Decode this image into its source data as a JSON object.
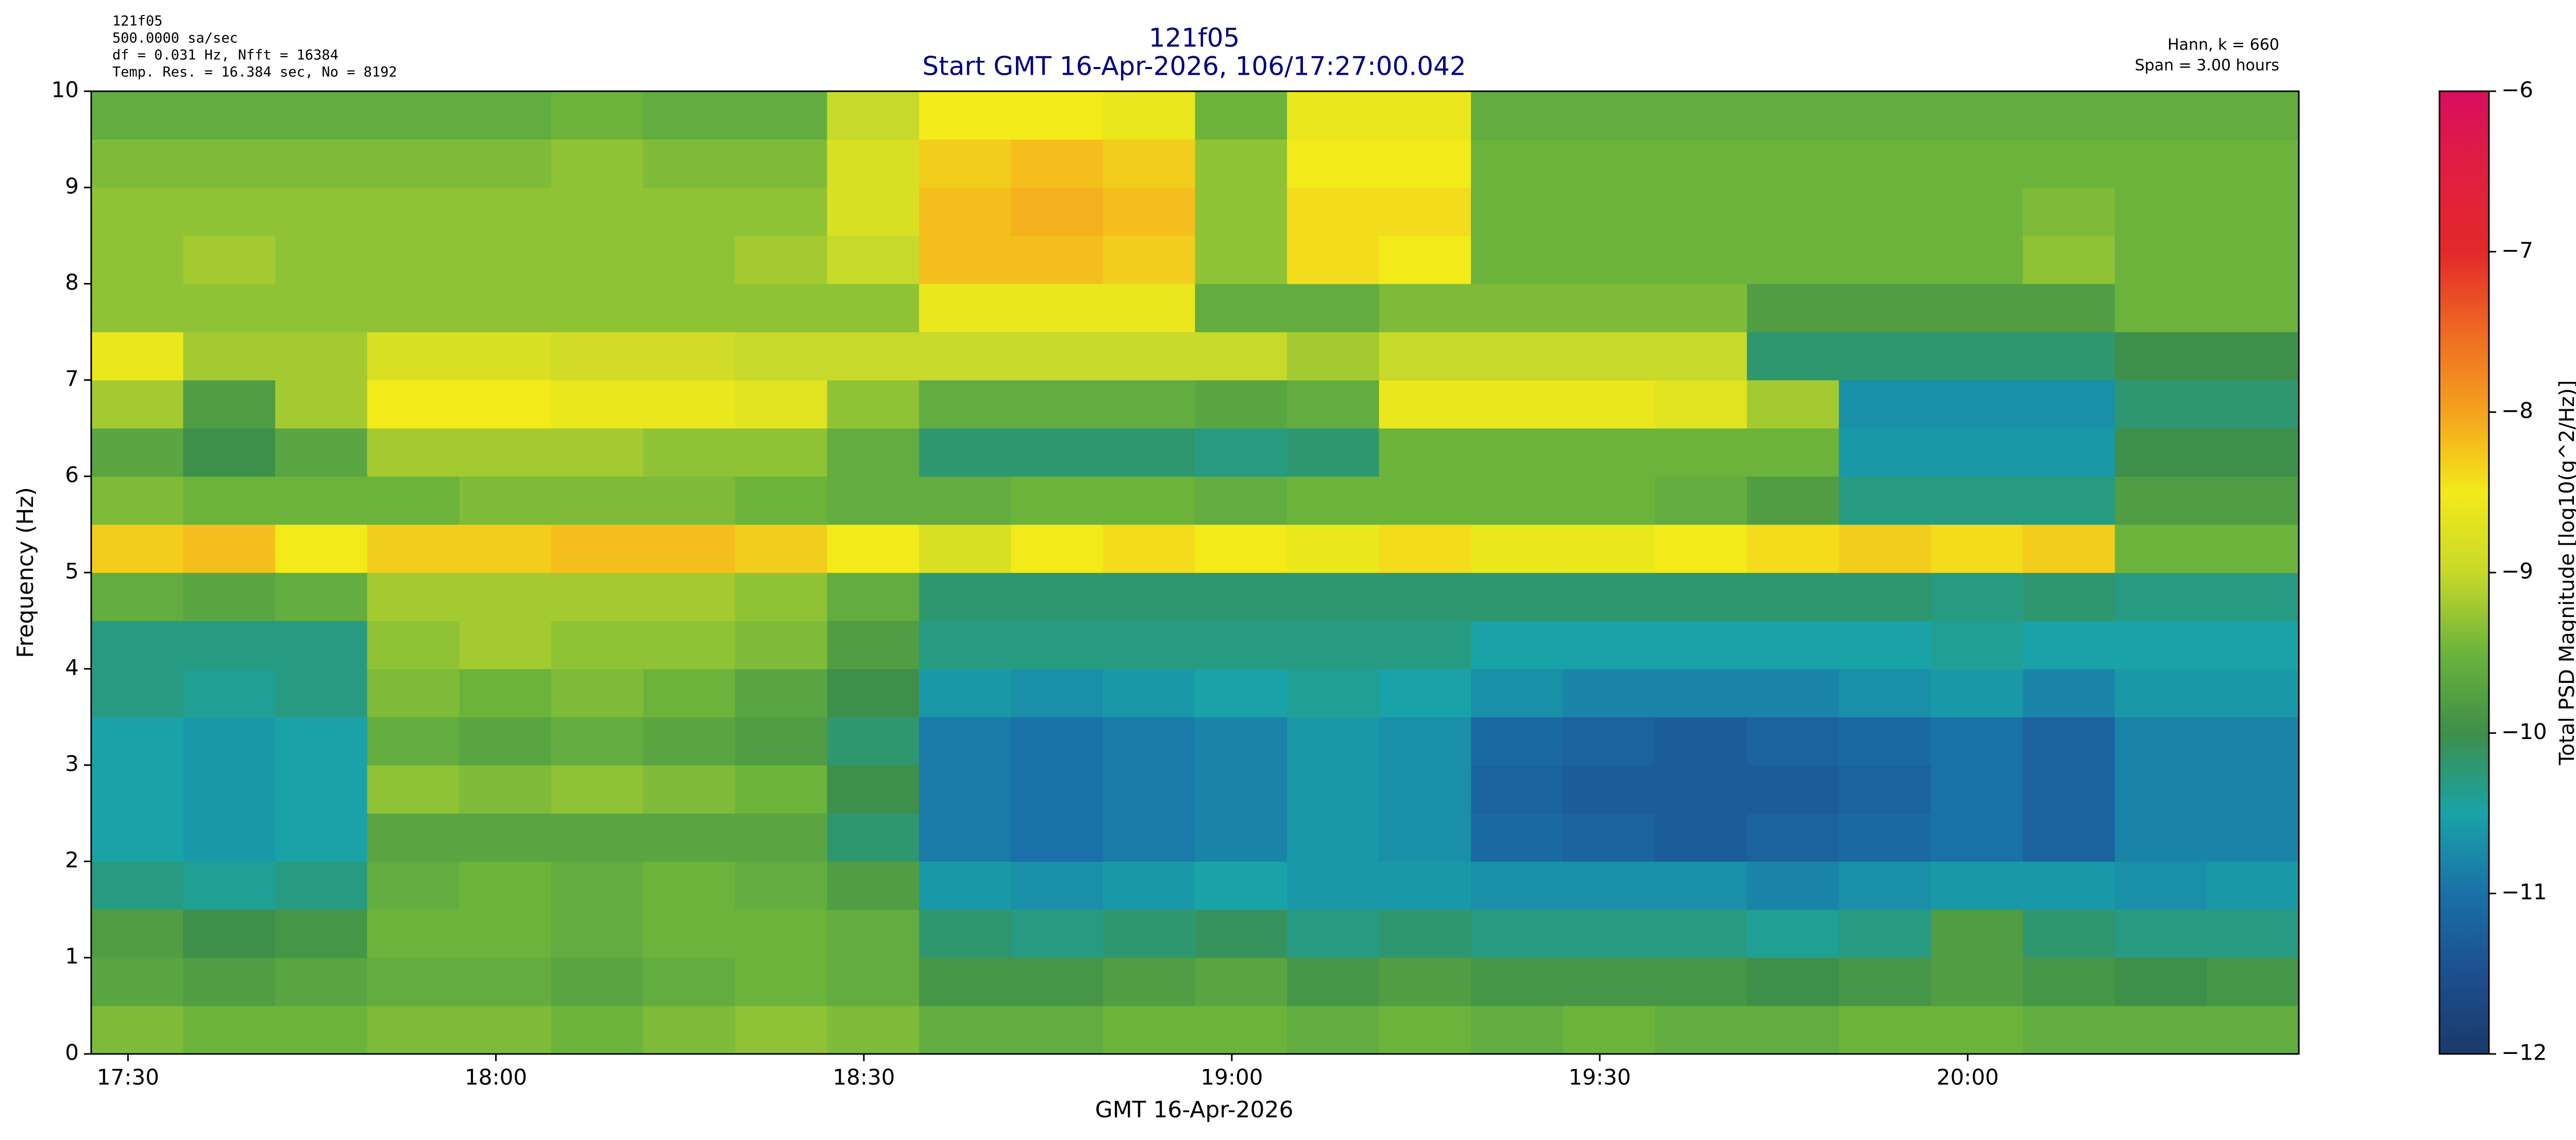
{
  "chart_data": {
    "type": "heatmap",
    "title": "121f05",
    "subtitle": "Start GMT 16-Apr-2026, 106/17:27:00.042",
    "info_left": [
      "121f05",
      "500.0000 sa/sec",
      "df = 0.031 Hz,  Nfft = 16384",
      "Temp. Res. = 16.384 sec, No = 8192"
    ],
    "info_right": [
      "Hann, k = 660",
      "Span = 3.00 hours"
    ],
    "xlabel": "GMT 16-Apr-2026",
    "ylabel": "Frequency (Hz)",
    "colorbar_label": "Total PSD Magnitude [log10(g^2/Hz)]",
    "xlim": [
      17.45,
      20.45
    ],
    "xticks": [
      {
        "value": 17.5,
        "label": "17:30"
      },
      {
        "value": 18,
        "label": "18:00"
      },
      {
        "value": 18.5,
        "label": "18:30"
      },
      {
        "value": 19,
        "label": "19:00"
      },
      {
        "value": 19.5,
        "label": "19:30"
      },
      {
        "value": 20,
        "label": "20:00"
      }
    ],
    "ylim": [
      0,
      10
    ],
    "yticks": [
      0,
      1,
      2,
      3,
      4,
      5,
      6,
      7,
      8,
      9,
      10
    ],
    "clim": [
      -12,
      -6
    ],
    "cticks": [
      {
        "value": -12,
        "label": "−12"
      },
      {
        "value": -11,
        "label": "−11"
      },
      {
        "value": -10,
        "label": "−10"
      },
      {
        "value": -9,
        "label": "−9"
      },
      {
        "value": -8,
        "label": "−8"
      },
      {
        "value": -7,
        "label": "−7"
      },
      {
        "value": -6,
        "label": "−6"
      }
    ],
    "colormap": [
      "#1b3a6b",
      "#1c4f8f",
      "#1a70a8",
      "#19a3a8",
      "#3d8f4a",
      "#6cb33c",
      "#c7d92a",
      "#f3ea1a",
      "#f4a21e",
      "#ee6a22",
      "#e3282a",
      "#e01f3f",
      "#d90d5e"
    ],
    "xbins": [
      17.45,
      17.575,
      17.7,
      17.825,
      17.95,
      18.075,
      18.2,
      18.325,
      18.45,
      18.575,
      18.7,
      18.825,
      18.95,
      19.075,
      19.2,
      19.325,
      19.45,
      19.575,
      19.7,
      19.825,
      19.95,
      20.075,
      20.2,
      20.325,
      20.45
    ],
    "ybins": [
      0,
      0.5,
      1,
      1.5,
      2,
      2.5,
      3,
      3.5,
      4,
      4.5,
      5,
      5.5,
      6,
      6.5,
      7,
      7.5,
      8,
      8.5,
      9,
      9.5,
      10
    ],
    "values": [
      [
        -9.4,
        -9.5,
        -9.5,
        -9.4,
        -9.4,
        -9.5,
        -9.4,
        -9.3,
        -9.4,
        -9.6,
        -9.6,
        -9.5,
        -9.5,
        -9.6,
        -9.5,
        -9.6,
        -9.5,
        -9.6,
        -9.6,
        -9.5,
        -9.5,
        -9.6,
        -9.6,
        -9.6
      ],
      [
        -9.7,
        -9.8,
        -9.7,
        -9.6,
        -9.6,
        -9.7,
        -9.6,
        -9.5,
        -9.6,
        -9.9,
        -9.9,
        -9.8,
        -9.7,
        -9.9,
        -9.8,
        -9.9,
        -9.9,
        -9.9,
        -10.0,
        -9.9,
        -9.8,
        -9.9,
        -10.0,
        -9.9
      ],
      [
        -9.8,
        -10.0,
        -9.9,
        -9.5,
        -9.5,
        -9.6,
        -9.5,
        -9.5,
        -9.6,
        -10.2,
        -10.3,
        -10.2,
        -10.1,
        -10.3,
        -10.2,
        -10.3,
        -10.3,
        -10.3,
        -10.4,
        -10.3,
        -9.8,
        -10.2,
        -10.3,
        -10.3
      ],
      [
        -10.3,
        -10.4,
        -10.3,
        -9.6,
        -9.5,
        -9.6,
        -9.5,
        -9.6,
        -9.8,
        -10.6,
        -10.7,
        -10.6,
        -10.5,
        -10.6,
        -10.6,
        -10.7,
        -10.7,
        -10.7,
        -10.8,
        -10.7,
        -10.6,
        -10.6,
        -10.7,
        -10.6
      ],
      [
        -10.5,
        -10.6,
        -10.5,
        -9.7,
        -9.7,
        -9.7,
        -9.7,
        -9.7,
        -10.2,
        -10.9,
        -11.0,
        -10.9,
        -10.8,
        -10.6,
        -10.7,
        -11.1,
        -11.2,
        -11.3,
        -11.2,
        -11.1,
        -11.0,
        -11.2,
        -10.8,
        -10.8
      ],
      [
        -10.5,
        -10.6,
        -10.5,
        -9.3,
        -9.4,
        -9.3,
        -9.4,
        -9.5,
        -10.0,
        -10.9,
        -11.0,
        -10.9,
        -10.8,
        -10.6,
        -10.7,
        -11.2,
        -11.3,
        -11.3,
        -11.3,
        -11.2,
        -11.0,
        -11.2,
        -10.8,
        -10.8
      ],
      [
        -10.5,
        -10.6,
        -10.5,
        -9.6,
        -9.7,
        -9.6,
        -9.7,
        -9.8,
        -10.2,
        -10.9,
        -11.0,
        -10.9,
        -10.8,
        -10.6,
        -10.7,
        -11.1,
        -11.2,
        -11.3,
        -11.2,
        -11.1,
        -11.0,
        -11.2,
        -10.8,
        -10.8
      ],
      [
        -10.3,
        -10.4,
        -10.3,
        -9.4,
        -9.5,
        -9.4,
        -9.5,
        -9.7,
        -10.0,
        -10.6,
        -10.7,
        -10.6,
        -10.5,
        -10.4,
        -10.5,
        -10.7,
        -10.8,
        -10.8,
        -10.8,
        -10.7,
        -10.6,
        -10.8,
        -10.6,
        -10.6
      ],
      [
        -10.3,
        -10.3,
        -10.3,
        -9.3,
        -9.2,
        -9.3,
        -9.3,
        -9.4,
        -9.8,
        -10.3,
        -10.3,
        -10.3,
        -10.3,
        -10.3,
        -10.3,
        -10.5,
        -10.5,
        -10.5,
        -10.5,
        -10.5,
        -10.4,
        -10.5,
        -10.5,
        -10.5
      ],
      [
        -9.6,
        -9.7,
        -9.6,
        -9.2,
        -9.2,
        -9.2,
        -9.2,
        -9.3,
        -9.6,
        -10.2,
        -10.2,
        -10.2,
        -10.2,
        -10.2,
        -10.2,
        -10.2,
        -10.2,
        -10.2,
        -10.2,
        -10.2,
        -10.3,
        -10.2,
        -10.3,
        -10.3
      ],
      [
        -8.3,
        -8.2,
        -8.5,
        -8.3,
        -8.3,
        -8.2,
        -8.2,
        -8.3,
        -8.5,
        -8.8,
        -8.5,
        -8.4,
        -8.5,
        -8.6,
        -8.4,
        -8.6,
        -8.6,
        -8.5,
        -8.4,
        -8.3,
        -8.4,
        -8.3,
        -9.5,
        -9.5
      ],
      [
        -9.4,
        -9.5,
        -9.5,
        -9.5,
        -9.4,
        -9.4,
        -9.4,
        -9.5,
        -9.6,
        -9.6,
        -9.5,
        -9.5,
        -9.6,
        -9.5,
        -9.5,
        -9.5,
        -9.5,
        -9.6,
        -9.8,
        -10.3,
        -10.3,
        -10.3,
        -9.8,
        -9.8
      ],
      [
        -9.7,
        -10.0,
        -9.7,
        -9.2,
        -9.2,
        -9.2,
        -9.3,
        -9.3,
        -9.6,
        -10.2,
        -10.2,
        -10.2,
        -10.3,
        -10.2,
        -9.5,
        -9.5,
        -9.5,
        -9.5,
        -9.5,
        -10.6,
        -10.6,
        -10.6,
        -10.0,
        -10.0
      ],
      [
        -9.2,
        -9.8,
        -9.2,
        -8.5,
        -8.5,
        -8.6,
        -8.6,
        -8.7,
        -9.3,
        -9.6,
        -9.6,
        -9.6,
        -9.7,
        -9.6,
        -8.6,
        -8.6,
        -8.6,
        -8.7,
        -9.2,
        -10.7,
        -10.7,
        -10.7,
        -10.2,
        -10.2
      ],
      [
        -8.6,
        -9.2,
        -9.2,
        -8.8,
        -8.8,
        -8.9,
        -8.9,
        -9.0,
        -9.0,
        -9.0,
        -9.0,
        -9.0,
        -9.0,
        -9.2,
        -9.0,
        -9.0,
        -9.0,
        -9.0,
        -10.2,
        -10.2,
        -10.2,
        -10.2,
        -10.0,
        -10.0
      ],
      [
        -9.3,
        -9.3,
        -9.3,
        -9.3,
        -9.3,
        -9.3,
        -9.3,
        -9.3,
        -9.3,
        -8.6,
        -8.6,
        -8.6,
        -9.6,
        -9.6,
        -9.4,
        -9.4,
        -9.4,
        -9.4,
        -9.8,
        -9.8,
        -9.8,
        -9.8,
        -9.5,
        -9.5
      ],
      [
        -9.3,
        -9.2,
        -9.3,
        -9.3,
        -9.3,
        -9.3,
        -9.3,
        -9.2,
        -9.0,
        -8.2,
        -8.2,
        -8.3,
        -9.3,
        -8.4,
        -8.5,
        -9.5,
        -9.5,
        -9.5,
        -9.5,
        -9.5,
        -9.5,
        -9.3,
        -9.5,
        -9.5
      ],
      [
        -9.3,
        -9.3,
        -9.3,
        -9.3,
        -9.3,
        -9.3,
        -9.3,
        -9.3,
        -8.8,
        -8.2,
        -8.1,
        -8.2,
        -9.3,
        -8.4,
        -8.4,
        -9.5,
        -9.5,
        -9.5,
        -9.5,
        -9.5,
        -9.5,
        -9.4,
        -9.5,
        -9.5
      ],
      [
        -9.4,
        -9.4,
        -9.4,
        -9.4,
        -9.4,
        -9.3,
        -9.4,
        -9.4,
        -8.8,
        -8.3,
        -8.2,
        -8.3,
        -9.3,
        -8.5,
        -8.5,
        -9.5,
        -9.5,
        -9.5,
        -9.5,
        -9.5,
        -9.5,
        -9.5,
        -9.5,
        -9.5
      ],
      [
        -9.6,
        -9.6,
        -9.6,
        -9.6,
        -9.6,
        -9.5,
        -9.6,
        -9.6,
        -9.0,
        -8.5,
        -8.5,
        -8.6,
        -9.5,
        -8.6,
        -8.6,
        -9.6,
        -9.6,
        -9.6,
        -9.6,
        -9.6,
        -9.6,
        -9.6,
        -9.6,
        -9.6
      ]
    ]
  }
}
